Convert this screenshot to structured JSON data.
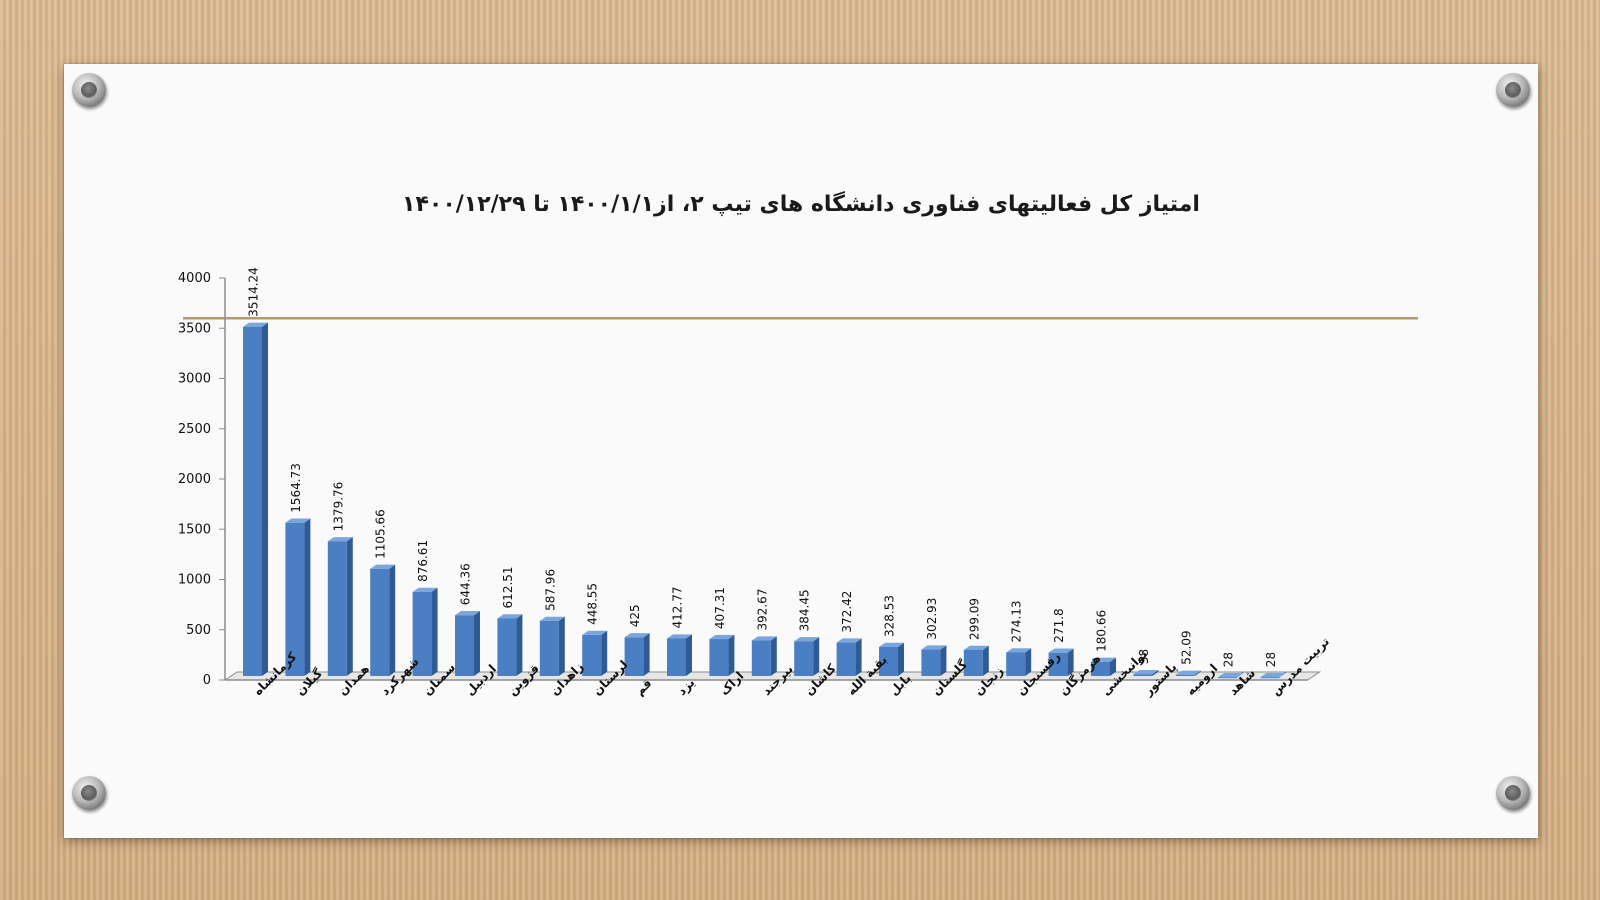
{
  "colors": {
    "bar_front": "#4a7fc4",
    "bar_side": "#2f5a94",
    "bar_top": "#7aa6dc",
    "reference_line": "#b59a6e",
    "axis": "#8c8c8c"
  },
  "chart_data": {
    "type": "bar",
    "title": "امتیاز کل فعالیتهای فناوری دانشگاه های تیپ ۲، از۱۴۰۰/۱/۱ تا ۱۴۰۰/۱۲/۲۹",
    "xlabel": "",
    "ylabel": "",
    "ylim": [
      0,
      4000
    ],
    "yticks": [
      0,
      500,
      1000,
      1500,
      2000,
      2500,
      3000,
      3500,
      4000
    ],
    "reference_line_value": 3600,
    "categories": [
      "کرمانشاه",
      "گیلان",
      "همدان",
      "شهرکرد",
      "سمنان",
      "اردبیل",
      "قزوین",
      "زاهدان",
      "لرستان",
      "قم",
      "یزد",
      "اراک",
      "بیرجند",
      "کاشان",
      "بقیة الله",
      "بابل",
      "گلستان",
      "زنجان",
      "رفسنجان",
      "هرمزگان",
      "توانبخشی",
      "پاستور",
      "ارومیه",
      "شاهد",
      "تربیت مدرس"
    ],
    "values": [
      3514.24,
      1564.73,
      1379.76,
      1105.66,
      876.61,
      644.36,
      612.51,
      587.96,
      448.55,
      425,
      412.77,
      407.31,
      392.67,
      384.45,
      372.42,
      328.53,
      302.93,
      299.09,
      274.13,
      271.8,
      180.66,
      58,
      52.09,
      28,
      28
    ],
    "value_labels": [
      "3514.24",
      "1564.73",
      "1379.76",
      "1105.66",
      "876.61",
      "644.36",
      "612.51",
      "587.96",
      "448.55",
      "425",
      "412.77",
      "407.31",
      "392.67",
      "384.45",
      "372.42",
      "328.53",
      "302.93",
      "299.09",
      "274.13",
      "271.8",
      "180.66",
      "58",
      "52.09",
      "28",
      "28"
    ],
    "grid": false,
    "legend": "none"
  }
}
